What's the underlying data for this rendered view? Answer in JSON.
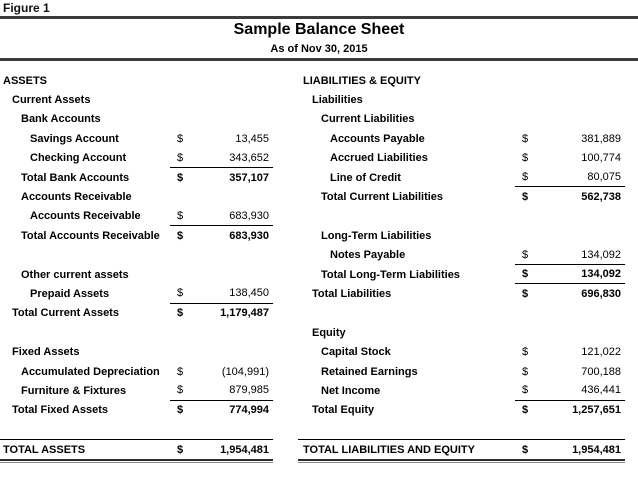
{
  "figure_label": "Figure 1",
  "title": "Sample Balance Sheet",
  "subtitle": "As of Nov 30, 2015",
  "currency_symbol": "$",
  "colors": {
    "text": "#000000",
    "header_rule": "#3c3c3c",
    "total_rule_dark": "#2d2d2d",
    "total_rule_gray": "#8a8a8a",
    "underline": "#000000",
    "background": "#ffffff"
  },
  "columns": [
    {
      "id": "assets",
      "rows": [
        {
          "type": "header",
          "indent": 0,
          "label": "ASSETS"
        },
        {
          "type": "header",
          "indent": 1,
          "label": "Current Assets"
        },
        {
          "type": "header",
          "indent": 2,
          "label": "Bank Accounts"
        },
        {
          "type": "detail",
          "indent": 3,
          "label": "Savings Account",
          "amount": "13,455"
        },
        {
          "type": "detail",
          "indent": 3,
          "label": "Checking Account",
          "amount": "343,652",
          "underline": true
        },
        {
          "type": "subtotal",
          "indent": 2,
          "label": "Total Bank Accounts",
          "amount": "357,107"
        },
        {
          "type": "header",
          "indent": 2,
          "label": "Accounts Receivable"
        },
        {
          "type": "detail",
          "indent": 3,
          "label": "Accounts Receivable",
          "amount": "683,930",
          "underline": true
        },
        {
          "type": "subtotal",
          "indent": 2,
          "label": "Total Accounts Receivable",
          "amount": "683,930"
        },
        {
          "type": "blank"
        },
        {
          "type": "header",
          "indent": 2,
          "label": "Other current assets"
        },
        {
          "type": "detail",
          "indent": 3,
          "label": "Prepaid Assets",
          "amount": "138,450",
          "underline": true
        },
        {
          "type": "subtotal",
          "indent": 1,
          "label": "Total Current Assets",
          "amount": "1,179,487"
        },
        {
          "type": "blank"
        },
        {
          "type": "header",
          "indent": 1,
          "label": "Fixed Assets"
        },
        {
          "type": "detail",
          "indent": 2,
          "label": "Accumulated Depreciation",
          "amount": "(104,991)"
        },
        {
          "type": "detail",
          "indent": 2,
          "label": "Furniture & Fixtures",
          "amount": "879,985",
          "underline": true
        },
        {
          "type": "subtotal",
          "indent": 1,
          "label": "Total Fixed Assets",
          "amount": "774,994"
        },
        {
          "type": "blank"
        },
        {
          "type": "grand",
          "indent": 0,
          "label": "TOTAL ASSETS",
          "amount": "1,954,481"
        }
      ]
    },
    {
      "id": "liabilities-equity",
      "rows": [
        {
          "type": "header",
          "indent": 0,
          "label": "LIABILITIES & EQUITY"
        },
        {
          "type": "header",
          "indent": 1,
          "label": "Liabilities"
        },
        {
          "type": "header",
          "indent": 2,
          "label": "Current Liabilities"
        },
        {
          "type": "detail",
          "indent": 3,
          "label": "Accounts Payable",
          "amount": "381,889"
        },
        {
          "type": "detail",
          "indent": 3,
          "label": "Accrued Liabilities",
          "amount": "100,774"
        },
        {
          "type": "detail",
          "indent": 3,
          "label": "Line of Credit",
          "amount": "80,075",
          "underline": true
        },
        {
          "type": "subtotal",
          "indent": 2,
          "label": "Total Current Liabilities",
          "amount": "562,738"
        },
        {
          "type": "blank"
        },
        {
          "type": "header",
          "indent": 2,
          "label": "Long-Term Liabilities"
        },
        {
          "type": "detail",
          "indent": 3,
          "label": "Notes Payable",
          "amount": "134,092",
          "underline": true
        },
        {
          "type": "subtotal",
          "indent": 2,
          "label": "Total Long-Term Liabilities",
          "amount": "134,092",
          "underline": true
        },
        {
          "type": "subtotal",
          "indent": 1,
          "label": "Total Liabilities",
          "amount": "696,830"
        },
        {
          "type": "blank"
        },
        {
          "type": "header",
          "indent": 1,
          "label": "Equity"
        },
        {
          "type": "detail",
          "indent": 2,
          "label": "Capital Stock",
          "amount": "121,022"
        },
        {
          "type": "detail",
          "indent": 2,
          "label": "Retained Earnings",
          "amount": "700,188"
        },
        {
          "type": "detail",
          "indent": 2,
          "label": "Net Income",
          "amount": "436,441",
          "underline": true
        },
        {
          "type": "subtotal",
          "indent": 1,
          "label": "Total Equity",
          "amount": "1,257,651"
        },
        {
          "type": "blank"
        },
        {
          "type": "grand",
          "indent": 0,
          "label": "TOTAL LIABILITIES AND EQUITY",
          "amount": "1,954,481"
        }
      ]
    }
  ]
}
